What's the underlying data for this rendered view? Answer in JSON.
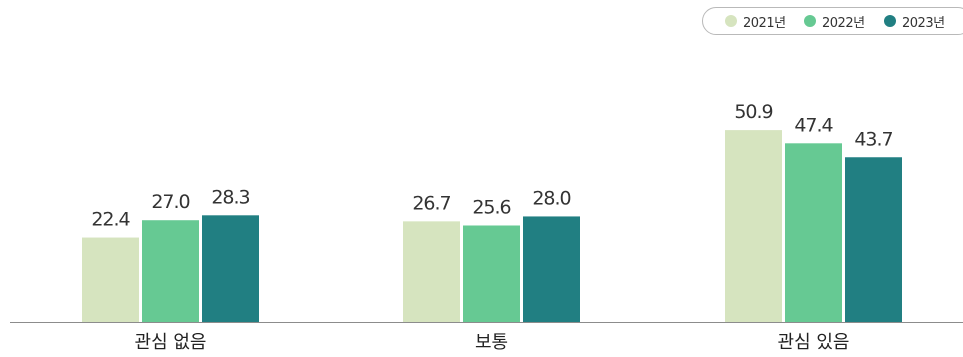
{
  "chart_data": {
    "type": "bar",
    "categories": [
      "관심 없음",
      "보통",
      "관심 있음"
    ],
    "series": [
      {
        "name": "2021년",
        "values": [
          22.4,
          26.7,
          50.9
        ],
        "color": "#d6e4bf"
      },
      {
        "name": "2022년",
        "values": [
          27.0,
          25.6,
          47.4
        ],
        "color": "#66c993"
      },
      {
        "name": "2023년",
        "values": [
          28.3,
          28.0,
          43.7
        ],
        "color": "#217f82"
      }
    ],
    "value_labels": [
      [
        "22.4",
        "26.7",
        "50.9"
      ],
      [
        "27.0",
        "25.6",
        "47.4"
      ],
      [
        "28.3",
        "28.0",
        "43.7"
      ]
    ],
    "title": "",
    "xlabel": "",
    "ylabel": "",
    "ylim": [
      0,
      70
    ],
    "grid": false,
    "legend_position": "top-right"
  }
}
